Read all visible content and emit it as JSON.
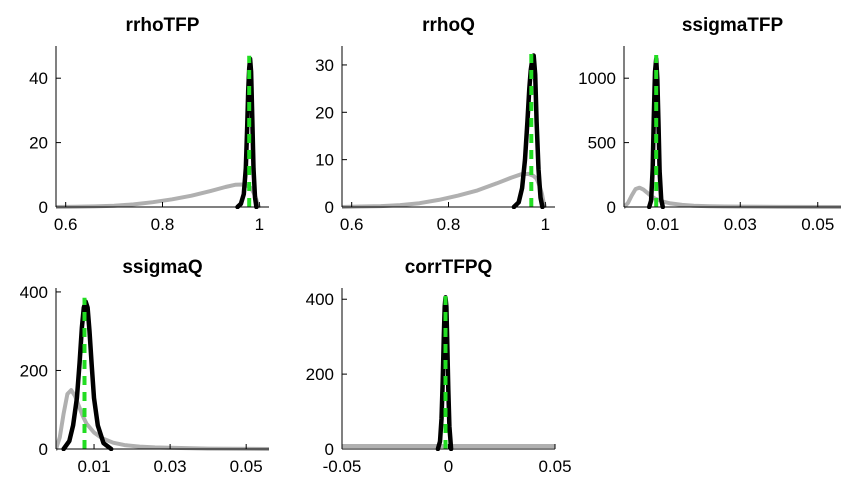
{
  "chart_data": [
    {
      "type": "line",
      "title": "rrhoTFP",
      "xlabel": "",
      "ylabel": "",
      "xlim": [
        0.58,
        1.02
      ],
      "ylim": [
        0,
        50
      ],
      "xticks": [
        0.6,
        0.8,
        1
      ],
      "xtick_labels": [
        "0.6",
        "0.8",
        "1"
      ],
      "yticks": [
        0,
        20,
        40
      ],
      "ytick_labels": [
        "0",
        "20",
        "40"
      ],
      "series": [
        {
          "role": "prior",
          "color": "#b0b0b0",
          "dash": false,
          "x": [
            0.58,
            0.62,
            0.66,
            0.7,
            0.74,
            0.78,
            0.82,
            0.86,
            0.9,
            0.93,
            0.95,
            0.965,
            0.975,
            0.982,
            0.988,
            0.993,
            0.996,
            0.999
          ],
          "y": [
            0.0,
            0.1,
            0.2,
            0.4,
            0.8,
            1.5,
            2.4,
            3.5,
            5.0,
            6.2,
            6.9,
            7.0,
            6.6,
            6.0,
            4.5,
            2.8,
            1.2,
            0.2
          ]
        },
        {
          "role": "posterior",
          "color": "#000000",
          "dash": false,
          "x": [
            0.955,
            0.962,
            0.968,
            0.972,
            0.975,
            0.977,
            0.979,
            0.981,
            0.983,
            0.985,
            0.988,
            0.991,
            0.994
          ],
          "y": [
            0,
            1,
            4,
            12,
            25,
            36,
            43,
            46,
            42,
            30,
            12,
            3,
            0
          ]
        },
        {
          "role": "mode",
          "color": "#22dd22",
          "dash": true,
          "x": [
            0.979,
            0.979
          ],
          "y": [
            0,
            47
          ]
        }
      ]
    },
    {
      "type": "line",
      "title": "rrhoQ",
      "xlabel": "",
      "ylabel": "",
      "xlim": [
        0.58,
        1.02
      ],
      "ylim": [
        0,
        34
      ],
      "xticks": [
        0.6,
        0.8,
        1
      ],
      "xtick_labels": [
        "0.6",
        "0.8",
        "1"
      ],
      "yticks": [
        0,
        10,
        20,
        30
      ],
      "ytick_labels": [
        "0",
        "10",
        "20",
        "30"
      ],
      "series": [
        {
          "role": "prior",
          "color": "#b0b0b0",
          "dash": false,
          "x": [
            0.58,
            0.62,
            0.66,
            0.7,
            0.74,
            0.78,
            0.82,
            0.86,
            0.9,
            0.93,
            0.95,
            0.965,
            0.975,
            0.982,
            0.988,
            0.993,
            0.996,
            0.999
          ],
          "y": [
            0.0,
            0.1,
            0.2,
            0.4,
            0.8,
            1.5,
            2.4,
            3.5,
            5.0,
            6.2,
            6.9,
            7.0,
            6.6,
            6.0,
            4.5,
            2.8,
            1.2,
            0.2
          ]
        },
        {
          "role": "posterior",
          "color": "#000000",
          "dash": false,
          "x": [
            0.935,
            0.945,
            0.952,
            0.958,
            0.963,
            0.967,
            0.97,
            0.973,
            0.976,
            0.979,
            0.982,
            0.986,
            0.99,
            0.994
          ],
          "y": [
            0,
            1,
            4,
            10,
            18,
            25,
            29,
            31,
            32,
            28,
            18,
            8,
            2,
            0
          ]
        },
        {
          "role": "mode",
          "color": "#22dd22",
          "dash": true,
          "x": [
            0.971,
            0.971
          ],
          "y": [
            0,
            33
          ]
        }
      ]
    },
    {
      "type": "line",
      "title": "ssigmaTFP",
      "xlabel": "",
      "ylabel": "",
      "xlim": [
        0.0,
        0.056
      ],
      "ylim": [
        0,
        1250
      ],
      "xticks": [
        0.01,
        0.03,
        0.05
      ],
      "xtick_labels": [
        "0.01",
        "0.03",
        "0.05"
      ],
      "yticks": [
        0,
        500,
        1000
      ],
      "ytick_labels": [
        "0",
        "500",
        "1000"
      ],
      "series": [
        {
          "role": "prior",
          "color": "#b0b0b0",
          "dash": false,
          "x": [
            0.0,
            0.001,
            0.002,
            0.003,
            0.004,
            0.005,
            0.006,
            0.007,
            0.008,
            0.01,
            0.012,
            0.015,
            0.018,
            0.022,
            0.026,
            0.03,
            0.04,
            0.056
          ],
          "y": [
            0,
            30,
            90,
            140,
            150,
            135,
            110,
            85,
            65,
            42,
            28,
            16,
            10,
            6,
            4,
            3,
            1,
            0
          ]
        },
        {
          "role": "posterior",
          "color": "#000000",
          "dash": false,
          "x": [
            0.0065,
            0.007,
            0.0074,
            0.0077,
            0.008,
            0.0083,
            0.0086,
            0.0089,
            0.0092,
            0.0096,
            0.01
          ],
          "y": [
            0,
            50,
            300,
            700,
            1050,
            1150,
            1000,
            650,
            280,
            60,
            0
          ]
        },
        {
          "role": "mode",
          "color": "#22dd22",
          "dash": true,
          "x": [
            0.0083,
            0.0083
          ],
          "y": [
            0,
            1180
          ]
        }
      ]
    },
    {
      "type": "line",
      "title": "ssigmaQ",
      "xlabel": "",
      "ylabel": "",
      "xlim": [
        0.0,
        0.056
      ],
      "ylim": [
        0,
        410
      ],
      "xticks": [
        0.01,
        0.03,
        0.05
      ],
      "xtick_labels": [
        "0.01",
        "0.03",
        "0.05"
      ],
      "yticks": [
        0,
        200,
        400
      ],
      "ytick_labels": [
        "0",
        "200",
        "400"
      ],
      "series": [
        {
          "role": "prior",
          "color": "#b0b0b0",
          "dash": false,
          "x": [
            0.0,
            0.001,
            0.002,
            0.003,
            0.004,
            0.005,
            0.006,
            0.007,
            0.008,
            0.01,
            0.012,
            0.015,
            0.018,
            0.022,
            0.026,
            0.03,
            0.04,
            0.056
          ],
          "y": [
            0,
            30,
            90,
            140,
            150,
            135,
            110,
            85,
            65,
            42,
            28,
            16,
            10,
            6,
            4,
            3,
            1,
            0
          ]
        },
        {
          "role": "posterior",
          "color": "#000000",
          "dash": false,
          "x": [
            0.002,
            0.0035,
            0.0045,
            0.0055,
            0.0062,
            0.0068,
            0.0073,
            0.0078,
            0.0083,
            0.0088,
            0.0094,
            0.01,
            0.011,
            0.0125,
            0.0145
          ],
          "y": [
            0,
            20,
            60,
            130,
            220,
            310,
            360,
            375,
            360,
            300,
            210,
            130,
            60,
            15,
            0
          ]
        },
        {
          "role": "mode",
          "color": "#22dd22",
          "dash": true,
          "x": [
            0.0075,
            0.0075
          ],
          "y": [
            0,
            385
          ]
        }
      ]
    },
    {
      "type": "line",
      "title": "corrTFPQ",
      "xlabel": "",
      "ylabel": "",
      "xlim": [
        -0.05,
        0.05
      ],
      "ylim": [
        0,
        430
      ],
      "xticks": [
        -0.05,
        0,
        0.05
      ],
      "xtick_labels": [
        "-0.05",
        "0",
        "0.05"
      ],
      "yticks": [
        0,
        200,
        400
      ],
      "ytick_labels": [
        "0",
        "200",
        "400"
      ],
      "series": [
        {
          "role": "prior",
          "color": "#b0b0b0",
          "dash": false,
          "x": [
            -0.05,
            0.05
          ],
          "y": [
            8,
            8
          ]
        },
        {
          "role": "posterior",
          "color": "#000000",
          "dash": false,
          "x": [
            -0.005,
            -0.004,
            -0.0033,
            -0.0027,
            -0.0022,
            -0.0018,
            -0.0014,
            -0.001,
            -0.0006,
            -0.0001,
            0.0004,
            0.0012
          ],
          "y": [
            0,
            20,
            80,
            180,
            300,
            380,
            405,
            380,
            290,
            160,
            60,
            0
          ]
        },
        {
          "role": "mode",
          "color": "#22dd22",
          "dash": true,
          "x": [
            -0.0014,
            -0.0014
          ],
          "y": [
            0,
            410
          ]
        }
      ]
    }
  ]
}
